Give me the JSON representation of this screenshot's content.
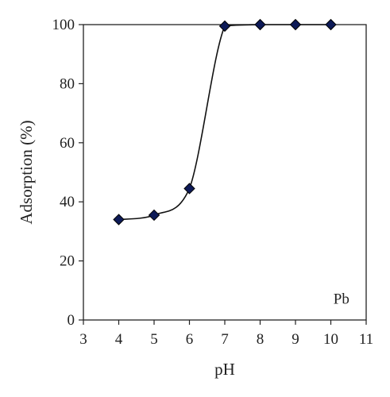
{
  "chart_data": {
    "type": "line",
    "title": "",
    "xlabel": "pH",
    "ylabel": "Adsorption (%)",
    "xlim": [
      3,
      11
    ],
    "ylim": [
      0,
      100
    ],
    "xticks": [
      3,
      4,
      5,
      6,
      7,
      8,
      9,
      10,
      11
    ],
    "yticks": [
      0,
      20,
      40,
      60,
      80,
      100
    ],
    "grid": false,
    "annotation": "Pb",
    "marker": "diamond",
    "line_style": "smooth",
    "colors": {
      "line": "#111111",
      "marker_fill": "#0d1a57",
      "marker_stroke": "#000000"
    },
    "series": [
      {
        "x": [
          4,
          5,
          6,
          7,
          8,
          9,
          10
        ],
        "y": [
          34,
          35.5,
          44.5,
          99.5,
          100,
          100,
          100
        ]
      }
    ]
  }
}
